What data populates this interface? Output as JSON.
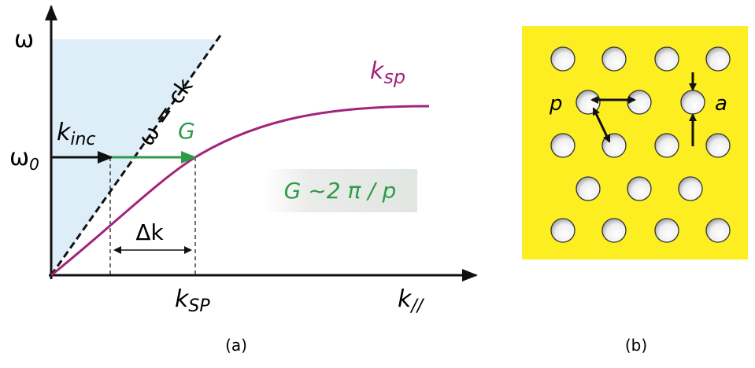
{
  "panel_a": {
    "y_axis_label": "ω",
    "omega0": {
      "symbol": "ω",
      "subscript": "0"
    },
    "k_inc": {
      "symbol": "k",
      "subscript": "inc"
    },
    "light_line": "ω = ck",
    "grating_vector": "G",
    "k_sp_curve": {
      "symbol": "k",
      "subscript": "sp"
    },
    "formula": "G ~2 π / p",
    "delta_k": "Δk",
    "k_SP": {
      "symbol": "k",
      "subscript": "SP"
    },
    "x_axis_label": {
      "symbol": "k",
      "subscript": "//"
    },
    "caption": "(a)"
  },
  "panel_b": {
    "pitch": "p",
    "diameter": "a",
    "caption": "(b)"
  }
}
